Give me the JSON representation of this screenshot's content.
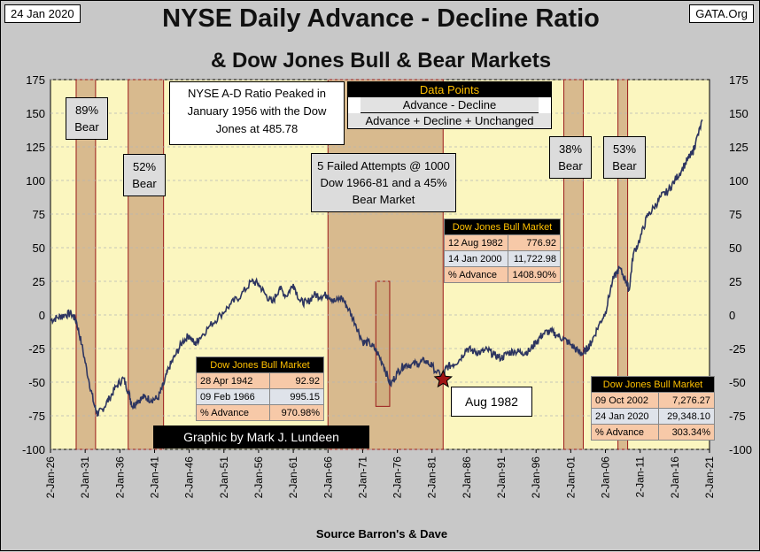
{
  "header": {
    "date": "24 Jan 2020",
    "site": "GATA.Org",
    "title_line1": "NYSE Daily Advance - Decline Ratio",
    "title_line2": "& Dow Jones Bull & Bear Markets",
    "source": "Source Barron's & Dave",
    "credit": "Graphic by Mark J. Lundeen"
  },
  "chart_data": {
    "type": "line",
    "title": "NYSE Daily Advance - Decline Ratio & Dow Jones Bull & Bear Markets",
    "xlabel": "Source Barron's & Dave",
    "ylabel": "",
    "ylim": [
      -100,
      175
    ],
    "xlim": [
      1926,
      2021
    ],
    "y_ticks": [
      "175",
      "150",
      "125",
      "100",
      "75",
      "50",
      "25",
      "0",
      "-25",
      "-50",
      "-75",
      "-100"
    ],
    "x_ticks": [
      "2-Jan-26",
      "2-Jan-31",
      "2-Jan-36",
      "2-Jan-41",
      "2-Jan-46",
      "2-Jan-51",
      "2-Jan-56",
      "2-Jan-61",
      "2-Jan-66",
      "2-Jan-71",
      "2-Jan-76",
      "2-Jan-81",
      "2-Jan-86",
      "2-Jan-91",
      "2-Jan-96",
      "2-Jan-01",
      "2-Jan-06",
      "2-Jan-11",
      "2-Jan-16",
      "2-Jan-21"
    ],
    "series": [
      {
        "name": "NYSE A-D Ratio",
        "x": [
          1926,
          1927,
          1928,
          1929,
          1929.7,
          1930.5,
          1931.5,
          1932.3,
          1932.8,
          1933.5,
          1934.5,
          1935.5,
          1936.5,
          1937.3,
          1937.8,
          1938.5,
          1939.5,
          1940.5,
          1941.5,
          1942.3,
          1943,
          1944,
          1945,
          1946,
          1946.8,
          1947.5,
          1949,
          1950.5,
          1952,
          1953.5,
          1955,
          1956,
          1957,
          1958,
          1959,
          1960,
          1961,
          1962,
          1963,
          1964,
          1965,
          1966,
          1967,
          1968,
          1969,
          1970,
          1971,
          1972,
          1973,
          1974,
          1975,
          1976,
          1977,
          1978,
          1979,
          1980,
          1981,
          1982.6,
          1983,
          1984,
          1985,
          1986,
          1987,
          1988,
          1989,
          1990,
          1991,
          1992,
          1993,
          1994,
          1995,
          1996,
          1997,
          1998,
          1999,
          2000,
          2001,
          2002,
          2002.8,
          2003.5,
          2004,
          2005,
          2006,
          2007,
          2008,
          2009,
          2009.4,
          2010,
          2011,
          2012,
          2013,
          2014,
          2015,
          2016,
          2017,
          2018,
          2018.5,
          2019,
          2020
        ],
        "values": [
          -4,
          -2,
          0,
          1,
          -4,
          -22,
          -48,
          -67,
          -74,
          -70,
          -62,
          -53,
          -47,
          -58,
          -68,
          -64,
          -61,
          -63,
          -62,
          -52,
          -40,
          -30,
          -20,
          -15,
          -22,
          -17,
          -8,
          0,
          8,
          15,
          25,
          23,
          15,
          9,
          20,
          14,
          23,
          10,
          9,
          15,
          14,
          15,
          10,
          13,
          4,
          -7,
          -20,
          -21,
          -27,
          -37,
          -52,
          -43,
          -37,
          -37,
          -36,
          -34,
          -38,
          -48,
          -39,
          -37,
          -33,
          -25,
          -27,
          -28,
          -26,
          -30,
          -32,
          -28,
          -27,
          -28,
          -27,
          -20,
          -14,
          -12,
          -15,
          -18,
          -22,
          -27,
          -29,
          -24,
          -20,
          -8,
          2,
          25,
          35,
          25,
          18,
          45,
          57,
          73,
          80,
          88,
          92,
          100,
          108,
          117,
          120,
          128,
          145
        ]
      }
    ],
    "markets": [
      {
        "label": "89%\nBear",
        "start": 1929.7,
        "end": 1932.5
      },
      {
        "label": "52%\nBear",
        "start": 1937.2,
        "end": 1942.3
      },
      {
        "label": "",
        "start": 1966.0,
        "end": 1982.6
      },
      {
        "label": "",
        "start": 1972.9,
        "end": 1974.9
      },
      {
        "label": "38%\nBear",
        "start": 2000.0,
        "end": 2002.8
      },
      {
        "label": "53%\nBear",
        "start": 2007.8,
        "end": 2009.2
      }
    ],
    "annotations": [
      {
        "text": "Aug 1982",
        "x": 1982.6,
        "y": -48
      }
    ]
  },
  "notes": {
    "peak": "NYSE A-D Ratio Peaked in January 1956 with the Dow Jones at 485.78",
    "failed": "5 Failed Attempts @ 1000 Dow 1966-81 and a 45% Bear Market",
    "aug": "Aug 1982",
    "bear89": "89% Bear",
    "bear52": "52% Bear",
    "bear38": "38% Bear",
    "bear53": "53% Bear",
    "formula_title": "Data Points",
    "formula_num": "Advance - Decline",
    "formula_den": "Advance + Decline + Unchanged"
  },
  "tables": {
    "t1": {
      "title": "Dow Jones Bull Market",
      "r1": [
        "28 Apr 1942",
        "92.92"
      ],
      "r2": [
        "09 Feb 1966",
        "995.15"
      ],
      "r3": [
        "% Advance",
        "970.98%"
      ]
    },
    "t2": {
      "title": "Dow Jones Bull Market",
      "r1": [
        "12 Aug 1982",
        "776.92"
      ],
      "r2": [
        "14 Jan 2000",
        "11,722.98"
      ],
      "r3": [
        "% Advance",
        "1408.90%"
      ]
    },
    "t3": {
      "title": "Dow Jones Bull Market",
      "r1": [
        "09 Oct 2002",
        "7,276.27"
      ],
      "r2": [
        "24 Jan 2020",
        "29,348.10"
      ],
      "r3": [
        "% Advance",
        "303.34%"
      ]
    }
  },
  "colors": {
    "plot_bg": "#fbf6bf",
    "bear_fill": "#d8ba8e",
    "bear_edge": "#9a1a1a",
    "line": "#2d3560",
    "header_gold": "#ffc000"
  }
}
